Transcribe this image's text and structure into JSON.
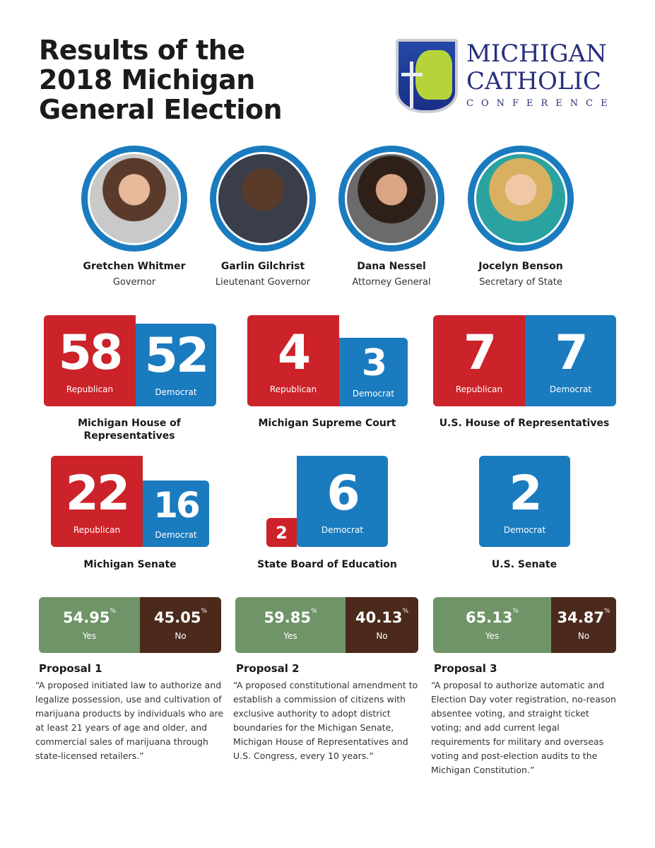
{
  "title": [
    "Results of the",
    "2018 Michigan",
    "General Election"
  ],
  "logo": {
    "line1": "MICHIGAN",
    "line2": "CATHOLIC",
    "line3": "CONFERENCE"
  },
  "candidates": [
    {
      "name": "Gretchen Whitmer",
      "office": "Governor"
    },
    {
      "name": "Garlin Gilchrist",
      "office": "Lieutenant Governor"
    },
    {
      "name": "Dana Nessel",
      "office": "Attorney General"
    },
    {
      "name": "Jocelyn Benson",
      "office": "Secretary of State"
    }
  ],
  "bodies": [
    {
      "label": "Michigan House of Representatives",
      "republican": "58",
      "democrat": "52",
      "rep_label": "Republican",
      "dem_label": "Democrat"
    },
    {
      "label": "Michigan Supreme Court",
      "republican": "4",
      "democrat": "3",
      "rep_label": "Republican",
      "dem_label": "Democrat"
    },
    {
      "label": "U.S. House of Representatives",
      "republican": "7",
      "democrat": "7",
      "rep_label": "Republican",
      "dem_label": "Democrat"
    },
    {
      "label": "Michigan Senate",
      "republican": "22",
      "democrat": "16",
      "rep_label": "Republican",
      "dem_label": "Democrat"
    },
    {
      "label": "State Board of Education",
      "republican": "2",
      "democrat": "6",
      "dem_label": "Democrat"
    },
    {
      "label": "U.S. Senate",
      "democrat": "2",
      "dem_label": "Democrat"
    }
  ],
  "proposals": [
    {
      "title": "Proposal 1",
      "yes": "54.95",
      "no": "45.05",
      "yes_label": "Yes",
      "no_label": "No",
      "pct": "%",
      "text": "“A proposed initiated law to authorize and legalize possession, use and cultivation of marijuana products by individuals who are at least 21 years of age and older, and commercial sales of marijuana through state-licensed retailers.”"
    },
    {
      "title": "Proposal 2",
      "yes": "59.85",
      "no": "40.13",
      "yes_label": "Yes",
      "no_label": "No",
      "pct": "%",
      "text": "“A proposed constitutional amendment to establish a commission of citizens with exclusive authority to adopt district boundaries for the Michigan Senate, Michigan House of Representatives and U.S. Congress, every 10 years.”"
    },
    {
      "title": "Proposal 3",
      "yes": "65.13",
      "no": "34.87",
      "yes_label": "Yes",
      "no_label": "No",
      "pct": "%",
      "text": "“A proposal to authorize automatic and Election Day voter registration, no-reason absentee voting, and straight ticket voting; and add current legal requirements for military and overseas voting and post-election audits to the Michigan Constitution.”"
    }
  ],
  "colors": {
    "republican": "#cc2229",
    "democrat": "#1a7bbf",
    "yes": "#6f9467",
    "no": "#4b2a1c"
  }
}
